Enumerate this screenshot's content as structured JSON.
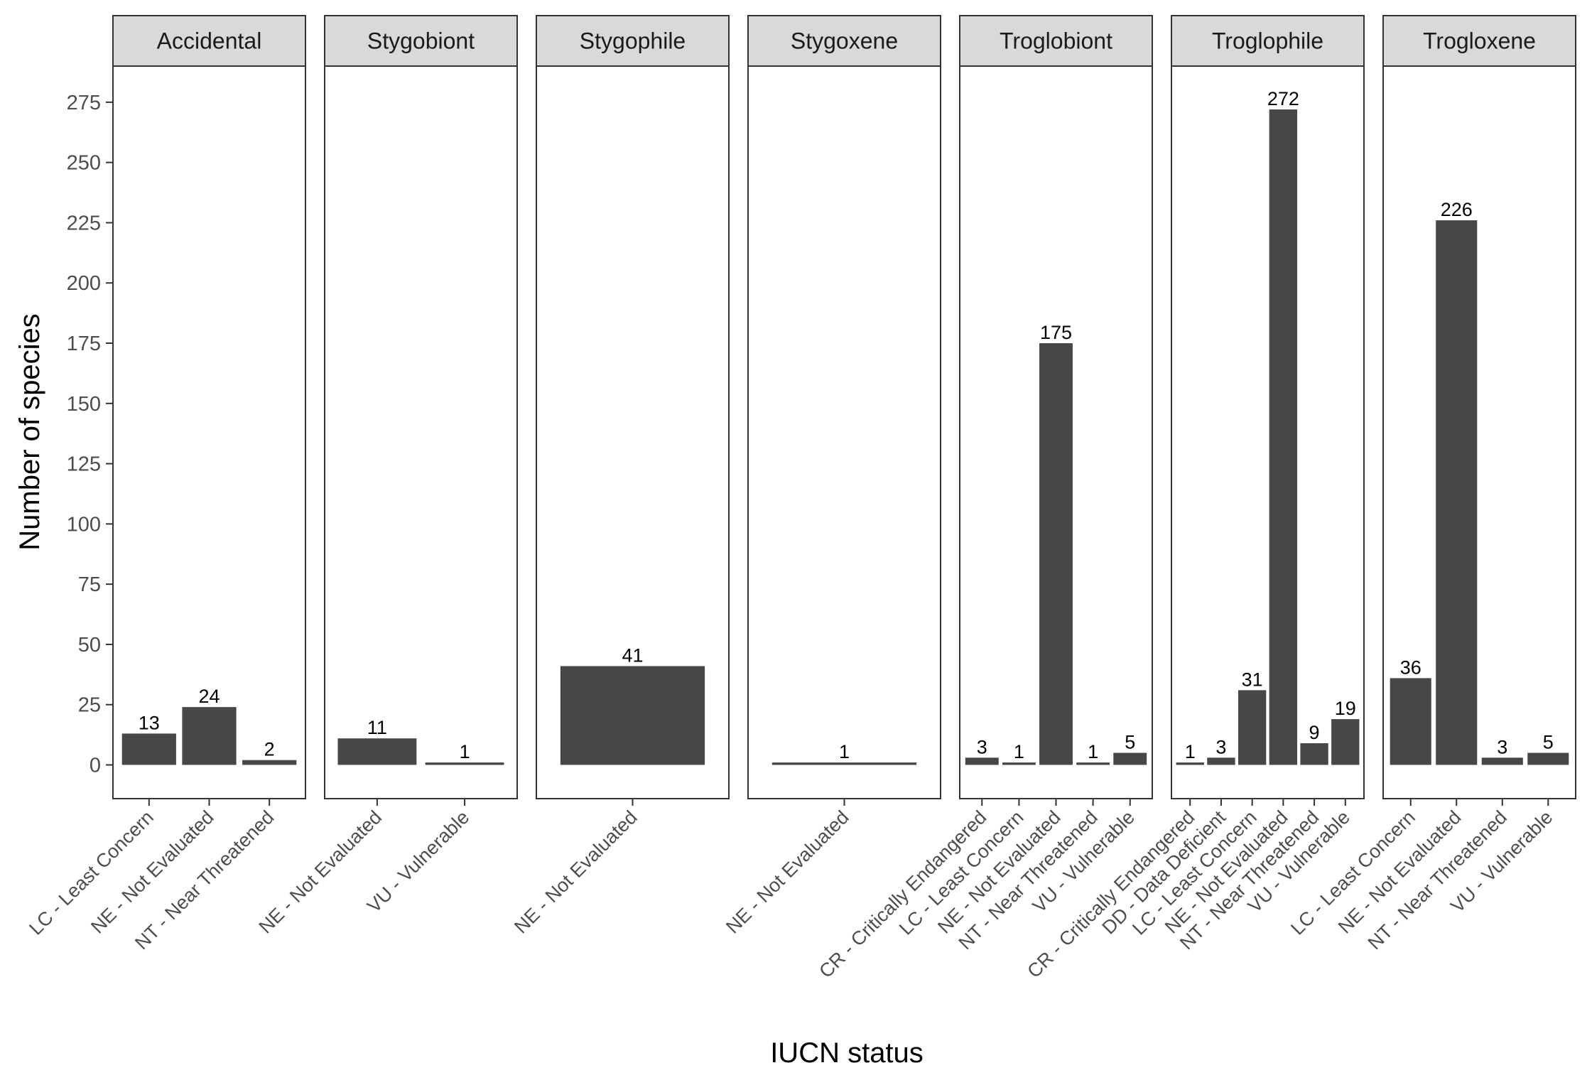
{
  "chart_data": {
    "type": "bar",
    "xlabel": "IUCN status",
    "ylabel": "Number of species",
    "ylim": [
      -14,
      290
    ],
    "yticks": [
      0,
      25,
      50,
      75,
      100,
      125,
      150,
      175,
      200,
      225,
      250,
      275
    ],
    "bar_color": "#474747",
    "strip_color": "#d9d9d9",
    "panels": [
      {
        "facet": "Accidental",
        "categories": [
          "LC - Least Concern",
          "NE - Not Evaluated",
          "NT - Near Threatened"
        ],
        "values": [
          13,
          24,
          2
        ]
      },
      {
        "facet": "Stygobiont",
        "categories": [
          "NE - Not Evaluated",
          "VU - Vulnerable"
        ],
        "values": [
          11,
          1
        ]
      },
      {
        "facet": "Stygophile",
        "categories": [
          "NE - Not Evaluated"
        ],
        "values": [
          41
        ]
      },
      {
        "facet": "Stygoxene",
        "categories": [
          "NE - Not Evaluated"
        ],
        "values": [
          1
        ]
      },
      {
        "facet": "Troglobiont",
        "categories": [
          "CR - Critically Endangered",
          "LC - Least Concern",
          "NE - Not Evaluated",
          "NT - Near Threatened",
          "VU - Vulnerable"
        ],
        "values": [
          3,
          1,
          175,
          1,
          5
        ]
      },
      {
        "facet": "Troglophile",
        "categories": [
          "CR - Critically Endangered",
          "DD - Data Deficient",
          "LC - Least Concern",
          "NE - Not Evaluated",
          "NT - Near Threatened",
          "VU - Vulnerable"
        ],
        "values": [
          1,
          3,
          31,
          272,
          9,
          19
        ]
      },
      {
        "facet": "Trogloxene",
        "categories": [
          "LC - Least Concern",
          "NE - Not Evaluated",
          "NT - Near Threatened",
          "VU - Vulnerable"
        ],
        "values": [
          36,
          226,
          3,
          5
        ]
      }
    ]
  }
}
